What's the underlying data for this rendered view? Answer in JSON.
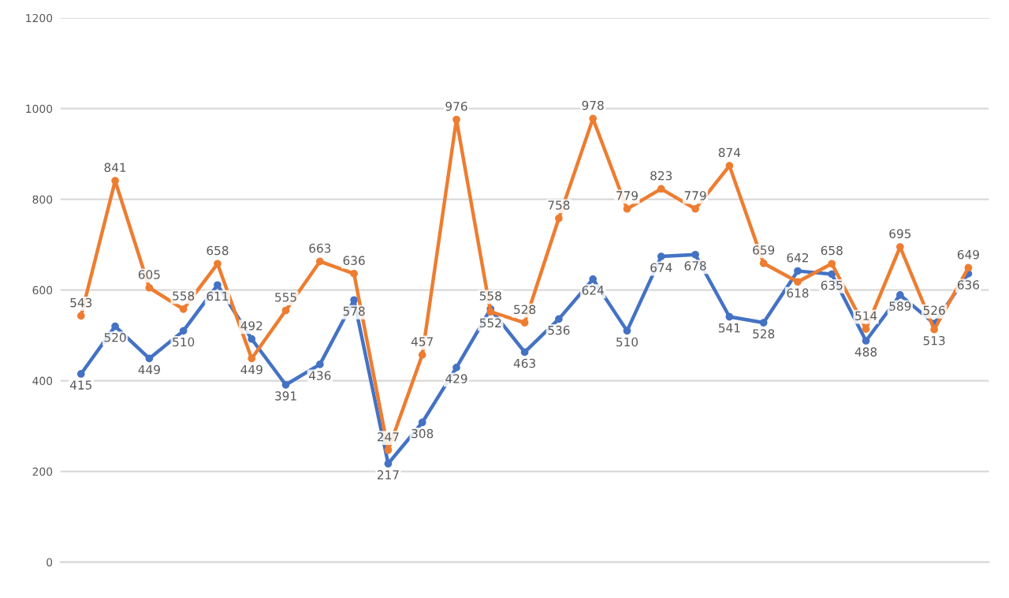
{
  "chart_data": {
    "type": "line",
    "categories": [
      null,
      null,
      null,
      null,
      null,
      null,
      null,
      null,
      null,
      null,
      null,
      null,
      null,
      null,
      null,
      null,
      null,
      null,
      null,
      null,
      null,
      null,
      null,
      null,
      null,
      null,
      null
    ],
    "series": [
      {
        "color": "#4472c4",
        "values": [
          415,
          520,
          449,
          510,
          611,
          492,
          391,
          436,
          578,
          217,
          308,
          429,
          558,
          463,
          536,
          624,
          510,
          674,
          678,
          541,
          528,
          642,
          635,
          488,
          589,
          526,
          636
        ]
      },
      {
        "color": "#ed7d31",
        "values": [
          543,
          841,
          605,
          558,
          658,
          449,
          555,
          663,
          636,
          247,
          457,
          976,
          552,
          528,
          758,
          978,
          779,
          823,
          779,
          874,
          659,
          618,
          658,
          514,
          695,
          513,
          649
        ]
      }
    ],
    "ylim": [
      0,
      1200
    ],
    "yticks": [
      0,
      200,
      400,
      600,
      800,
      1000,
      1200
    ],
    "grid": "y",
    "marker": "circle",
    "line_style": "solid",
    "data_labels": true,
    "tick_labels": "y",
    "legend": false
  }
}
